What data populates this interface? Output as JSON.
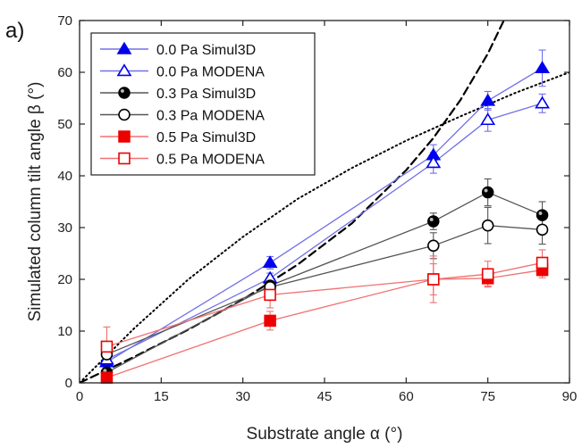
{
  "chart_data": {
    "type": "line",
    "panel_label": "a)",
    "xlabel": "Substrate angle α (°)",
    "ylabel": "Simulated column tilt angle β (°)",
    "xlim": [
      0,
      90
    ],
    "ylim": [
      0,
      70
    ],
    "xticks": [
      0,
      15,
      30,
      45,
      60,
      75,
      90
    ],
    "yticks": [
      0,
      10,
      20,
      30,
      40,
      50,
      60,
      70
    ],
    "grid": false,
    "legend_position": "top-left",
    "x": [
      5,
      35,
      65,
      75,
      85
    ],
    "series": [
      {
        "name": "0.0 Pa Simul3D",
        "values": [
          4,
          23.2,
          44,
          54.5,
          60.8
        ],
        "errors": [
          1.2,
          1.2,
          2.0,
          1.8,
          3.5
        ],
        "color": "#0000ee",
        "line_color": "#7070e8",
        "marker": "triangle",
        "filled": true
      },
      {
        "name": "0.0 Pa MODENA",
        "values": [
          4.5,
          20.2,
          42.5,
          50.8,
          54
        ],
        "errors": [
          1.0,
          1.0,
          2.0,
          2.2,
          1.8
        ],
        "color": "#0000ee",
        "line_color": "#7070e8",
        "marker": "triangle",
        "filled": false
      },
      {
        "name": "0.3 Pa Simul3D",
        "values": [
          2,
          18.8,
          31.2,
          36.8,
          32.4
        ],
        "errors": [
          1.0,
          1.2,
          1.6,
          2.6,
          2.6
        ],
        "color": "#000000",
        "line_color": "#555555",
        "marker": "circle",
        "filled": true
      },
      {
        "name": "0.3 Pa MODENA",
        "values": [
          5.5,
          18.5,
          26.5,
          30.4,
          29.6
        ],
        "errors": [
          1.5,
          1.5,
          2.5,
          3.5,
          2.8
        ],
        "color": "#000000",
        "line_color": "#555555",
        "marker": "circle",
        "filled": false
      },
      {
        "name": "0.5 Pa Simul3D",
        "values": [
          1,
          12,
          20,
          20.2,
          21.8
        ],
        "errors": [
          0.8,
          1.8,
          4.5,
          1.5,
          1.5
        ],
        "color": "#ee0000",
        "line_color": "#f07070",
        "marker": "square",
        "filled": true
      },
      {
        "name": "0.5 Pa MODENA",
        "values": [
          7,
          17,
          20,
          21,
          23.2
        ],
        "errors": [
          3.8,
          2.5,
          3.0,
          2.5,
          2.5
        ],
        "color": "#ee0000",
        "line_color": "#f07070",
        "marker": "square",
        "filled": false
      }
    ],
    "reference_lines": [
      {
        "style": "dashed",
        "x": [
          0,
          10,
          20,
          30,
          40,
          50,
          60,
          65,
          70,
          75,
          80,
          85,
          90
        ],
        "y": [
          0,
          5.0,
          10.3,
          16.1,
          22.8,
          30.8,
          41.1,
          47.3,
          54.7,
          63.6,
          74.5,
          88,
          105
        ],
        "color": "#000000"
      },
      {
        "style": "dotted",
        "x": [
          0,
          10,
          20,
          30,
          40,
          50,
          60,
          70,
          80,
          90
        ],
        "y": [
          0,
          10.5,
          20,
          28.2,
          35.5,
          41.5,
          46.8,
          51.5,
          56,
          60
        ],
        "color": "#000000"
      }
    ]
  }
}
